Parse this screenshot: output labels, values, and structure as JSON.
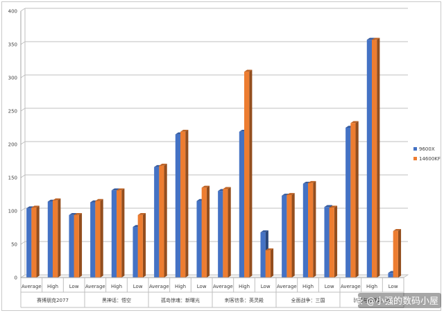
{
  "chart_data": {
    "type": "bar",
    "title": "",
    "xlabel": "",
    "ylabel": "",
    "ylim": [
      0,
      400
    ],
    "yticks": [
      0,
      50,
      100,
      150,
      200,
      250,
      300,
      350,
      400
    ],
    "grid": true,
    "legend_position": "right",
    "groups": [
      {
        "label": "赛博朋克2077",
        "categories": [
          "Average",
          "High",
          "Low"
        ]
      },
      {
        "label": "黑神话：悟空",
        "categories": [
          "Average",
          "High",
          "Low"
        ]
      },
      {
        "label": "孤岛惊魂：新曙光",
        "categories": [
          "Average",
          "High",
          "Low"
        ]
      },
      {
        "label": "刺客信条：英灵殿",
        "categories": [
          "Average",
          "High",
          "Low"
        ]
      },
      {
        "label": "全面战争：三国",
        "categories": [
          "Average",
          "High",
          "Low"
        ]
      },
      {
        "label": "骑马与砍杀2：霸",
        "categories": [
          "Average",
          "High",
          "Low"
        ]
      }
    ],
    "series": [
      {
        "name": "9600X",
        "color": "#4472c4",
        "values": [
          104,
          114,
          94,
          113,
          131,
          76,
          166,
          215,
          115,
          130,
          219,
          68,
          123,
          141,
          106,
          225,
          357,
          7
        ]
      },
      {
        "name": "14600KF",
        "color": "#ed7d31",
        "values": [
          105,
          116,
          94,
          115,
          131,
          94,
          168,
          219,
          135,
          133,
          309,
          41,
          124,
          142,
          105,
          232,
          357,
          70
        ]
      }
    ]
  },
  "watermark": "头条 @小强的数码小屋"
}
